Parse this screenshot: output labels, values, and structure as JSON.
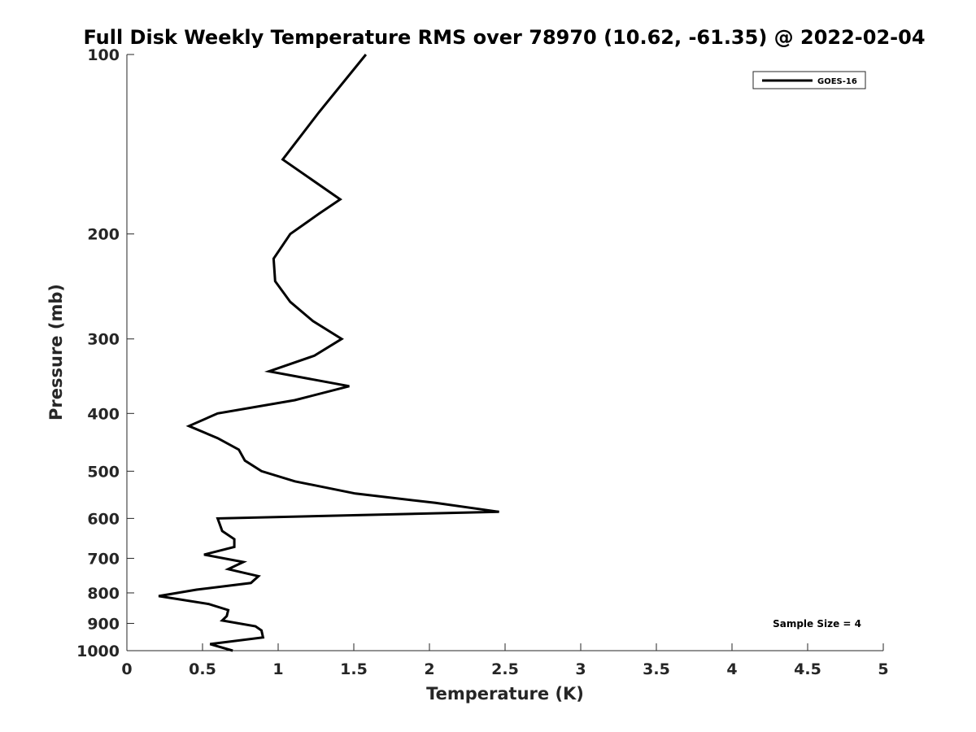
{
  "chart_data": {
    "type": "line",
    "title": "Full Disk Weekly Temperature RMS over 78970 (10.62, -61.35) @ 2022-02-04",
    "xlabel": "Temperature (K)",
    "ylabel": "Pressure (mb)",
    "xlim": [
      0,
      5
    ],
    "ylim": [
      100,
      1000
    ],
    "y_scale": "log",
    "y_reversed": true,
    "x_ticks": [
      "0",
      "0.5",
      "1",
      "1.5",
      "2",
      "2.5",
      "3",
      "3.5",
      "4",
      "4.5",
      "5"
    ],
    "y_ticks": [
      "100",
      "200",
      "300",
      "400",
      "500",
      "600",
      "700",
      "800",
      "900",
      "1000"
    ],
    "grid": false,
    "legend_position": "top-right",
    "annotation": "Sample Size = 4",
    "series": [
      {
        "name": "GOES-16",
        "color": "#000000",
        "points": [
          [
            1.58,
            100
          ],
          [
            1.27,
            125
          ],
          [
            1.03,
            150
          ],
          [
            1.41,
            175
          ],
          [
            1.27,
            185
          ],
          [
            1.08,
            200
          ],
          [
            0.97,
            220
          ],
          [
            0.98,
            240
          ],
          [
            1.08,
            260
          ],
          [
            1.23,
            280
          ],
          [
            1.42,
            300
          ],
          [
            1.24,
            320
          ],
          [
            0.94,
            340
          ],
          [
            1.47,
            360
          ],
          [
            1.11,
            380
          ],
          [
            0.6,
            400
          ],
          [
            0.41,
            420
          ],
          [
            0.6,
            440
          ],
          [
            0.74,
            460
          ],
          [
            0.78,
            480
          ],
          [
            0.89,
            500
          ],
          [
            1.11,
            520
          ],
          [
            1.51,
            545
          ],
          [
            2.04,
            565
          ],
          [
            2.46,
            585
          ],
          [
            0.6,
            600
          ],
          [
            0.63,
            630
          ],
          [
            0.71,
            650
          ],
          [
            0.71,
            670
          ],
          [
            0.51,
            690
          ],
          [
            0.77,
            710
          ],
          [
            0.67,
            730
          ],
          [
            0.87,
            750
          ],
          [
            0.82,
            770
          ],
          [
            0.46,
            790
          ],
          [
            0.21,
            810
          ],
          [
            0.54,
            835
          ],
          [
            0.67,
            855
          ],
          [
            0.66,
            875
          ],
          [
            0.63,
            890
          ],
          [
            0.85,
            910
          ],
          [
            0.89,
            925
          ],
          [
            0.9,
            950
          ],
          [
            0.55,
            975
          ],
          [
            0.7,
            1000
          ]
        ]
      }
    ]
  }
}
